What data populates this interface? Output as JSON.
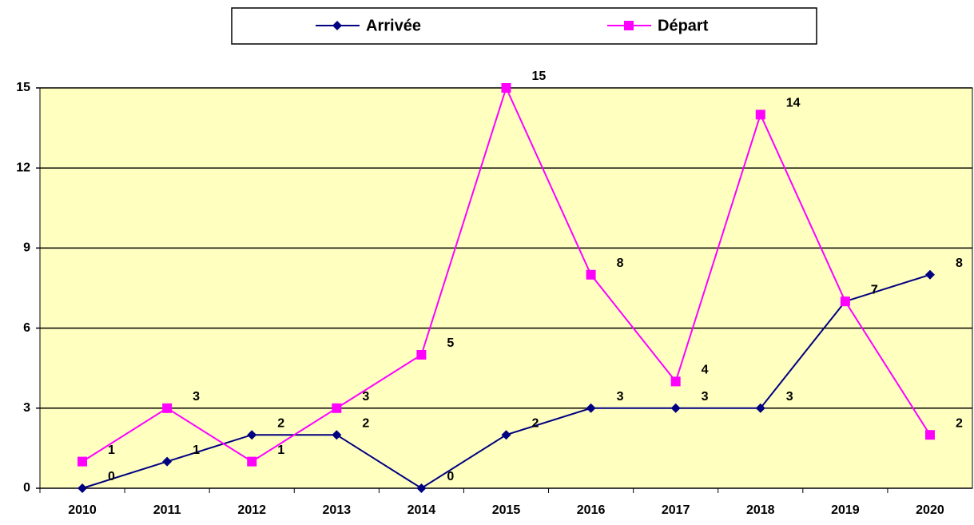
{
  "chart_data": {
    "type": "line",
    "categories": [
      "2010",
      "2011",
      "2012",
      "2013",
      "2014",
      "2015",
      "2016",
      "2017",
      "2018",
      "2019",
      "2020"
    ],
    "series": [
      {
        "name": "Arrivée",
        "color": "#000080",
        "values": [
          0,
          1,
          2,
          2,
          0,
          2,
          3,
          3,
          3,
          7,
          8
        ]
      },
      {
        "name": "Départ",
        "color": "#ff00ff",
        "values": [
          1,
          3,
          1,
          3,
          5,
          15,
          8,
          4,
          14,
          7,
          2
        ]
      }
    ],
    "ylim": [
      0,
      15
    ],
    "yticks": [
      0,
      3,
      6,
      9,
      12,
      15
    ],
    "grid": true,
    "legend": "top"
  }
}
